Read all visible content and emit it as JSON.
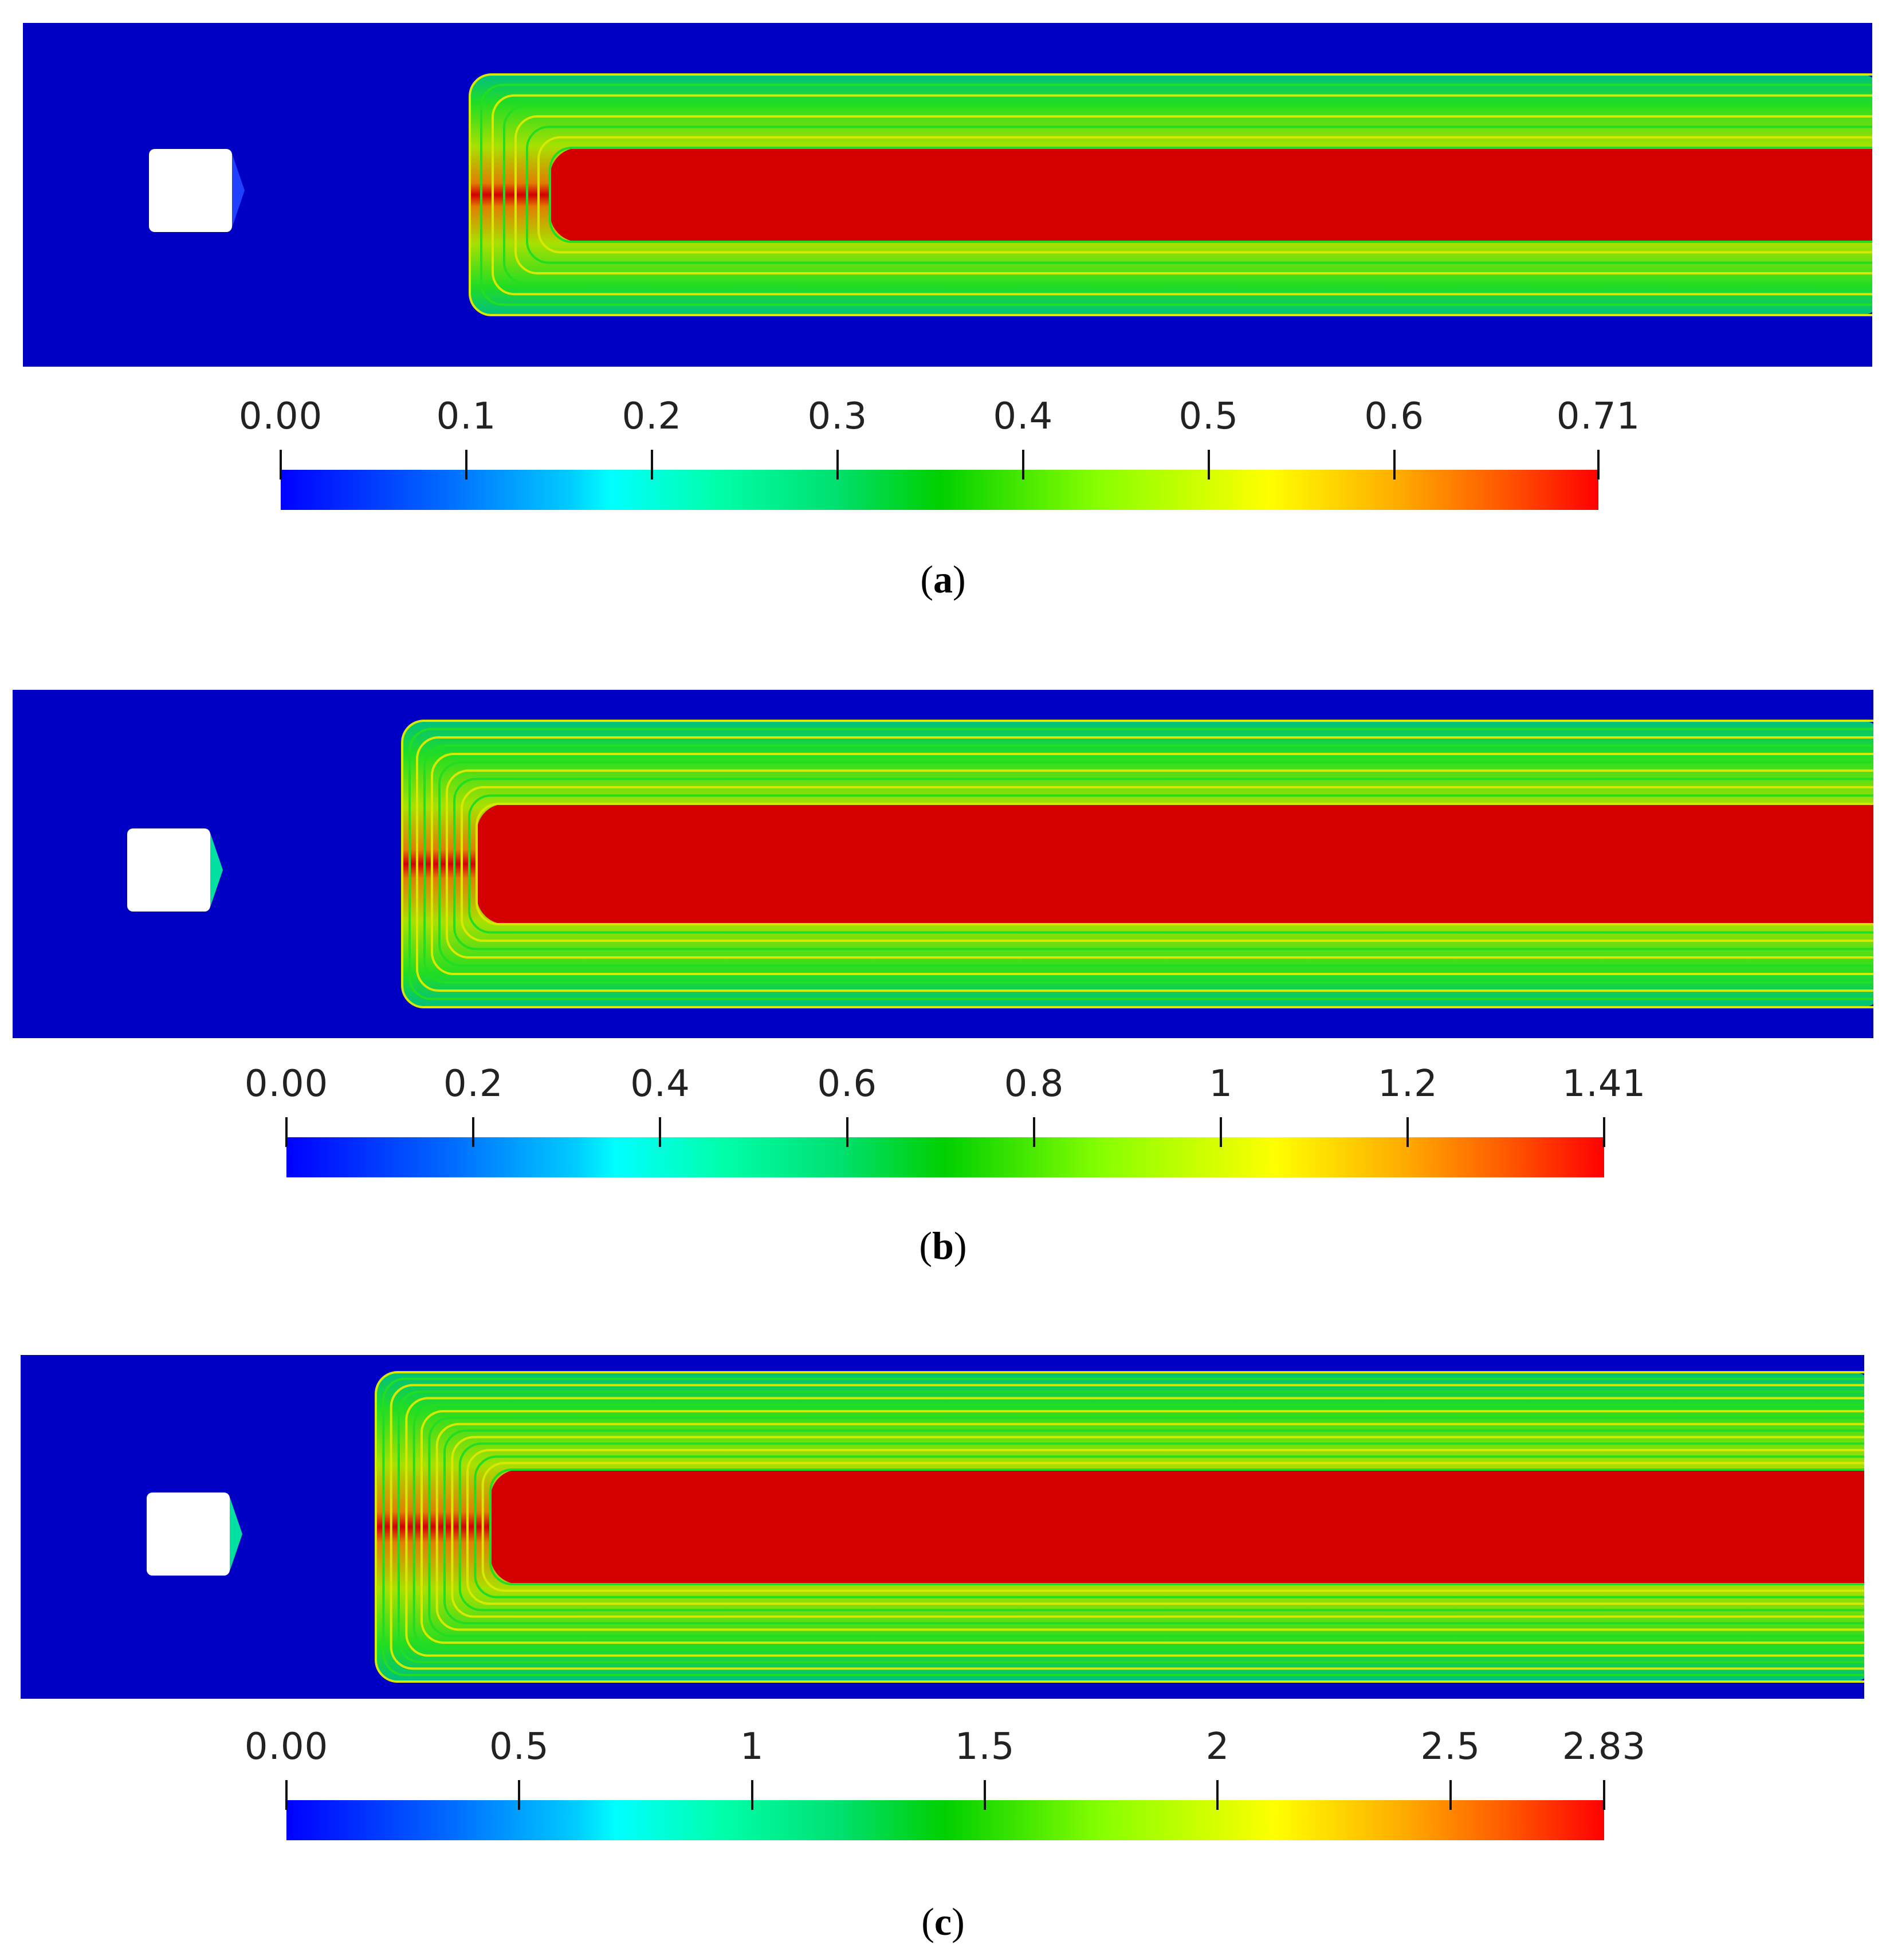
{
  "panels": [
    {
      "id": "a",
      "caption_letter": "a",
      "colorbar": {
        "range": [
          0.0,
          0.71
        ],
        "ticks": [
          {
            "label": "0.00",
            "value": 0.0
          },
          {
            "label": "0.1",
            "value": 0.1
          },
          {
            "label": "0.2",
            "value": 0.2
          },
          {
            "label": "0.3",
            "value": 0.3
          },
          {
            "label": "0.4",
            "value": 0.4
          },
          {
            "label": "0.5",
            "value": 0.5
          },
          {
            "label": "0.6",
            "value": 0.6
          },
          {
            "label": "0.71",
            "value": 0.71
          }
        ]
      }
    },
    {
      "id": "b",
      "caption_letter": "b",
      "colorbar": {
        "range": [
          0.0,
          1.41
        ],
        "ticks": [
          {
            "label": "0.00",
            "value": 0.0
          },
          {
            "label": "0.2",
            "value": 0.2
          },
          {
            "label": "0.4",
            "value": 0.4
          },
          {
            "label": "0.6",
            "value": 0.6
          },
          {
            "label": "0.8",
            "value": 0.8
          },
          {
            "label": "1",
            "value": 1.0
          },
          {
            "label": "1.2",
            "value": 1.2
          },
          {
            "label": "1.41",
            "value": 1.41
          }
        ]
      }
    },
    {
      "id": "c",
      "caption_letter": "c",
      "colorbar": {
        "range": [
          0.0,
          2.83
        ],
        "ticks": [
          {
            "label": "0.00",
            "value": 0.0
          },
          {
            "label": "0.5",
            "value": 0.5
          },
          {
            "label": "1",
            "value": 1.0
          },
          {
            "label": "1.5",
            "value": 1.5
          },
          {
            "label": "2",
            "value": 2.0
          },
          {
            "label": "2.5",
            "value": 2.5
          },
          {
            "label": "2.83",
            "value": 2.83
          }
        ]
      }
    }
  ],
  "colors": {
    "background_field": "#0000c4",
    "core": "#d40000",
    "contour_green": "#22dd22",
    "obstacle": "#ffffff"
  }
}
